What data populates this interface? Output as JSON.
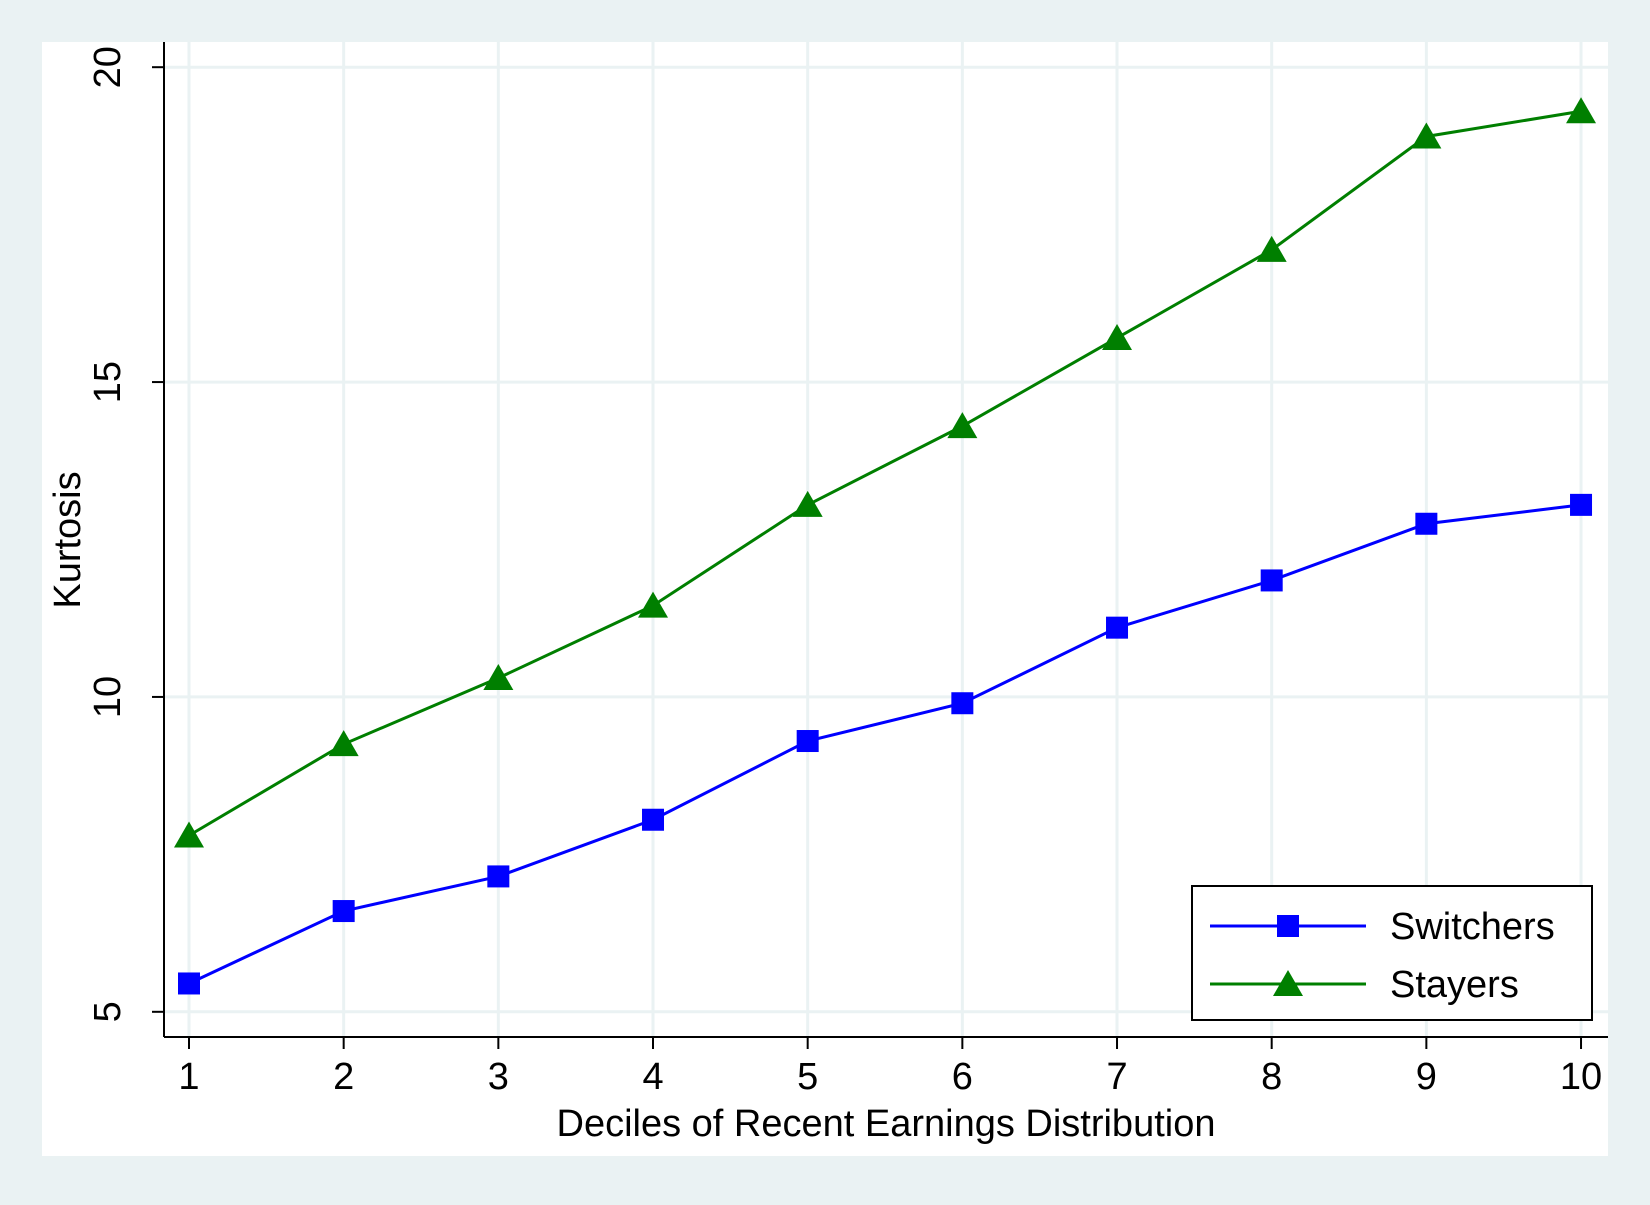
{
  "chart_data": {
    "type": "line",
    "title": "",
    "xlabel": "Deciles of Recent Earnings Distribution",
    "ylabel": "Kurtosis",
    "categories": [
      1,
      2,
      3,
      4,
      5,
      6,
      7,
      8,
      9,
      10
    ],
    "x_ticks": [
      "1",
      "2",
      "3",
      "4",
      "5",
      "6",
      "7",
      "8",
      "9",
      "10"
    ],
    "y_ticks": [
      "5",
      "10",
      "15",
      "20"
    ],
    "ylim": [
      4.6,
      20.4
    ],
    "grid": true,
    "legend_position": "bottom-right",
    "series": [
      {
        "name": "Switchers",
        "marker": "square",
        "color": "#0000ff",
        "values": [
          5.45,
          6.6,
          7.15,
          8.05,
          9.3,
          9.9,
          11.1,
          11.85,
          12.75,
          13.05
        ]
      },
      {
        "name": "Stayers",
        "marker": "triangle",
        "color": "#007f00",
        "values": [
          7.8,
          9.25,
          10.3,
          11.45,
          13.05,
          14.3,
          15.7,
          17.1,
          18.9,
          19.3
        ]
      }
    ]
  }
}
